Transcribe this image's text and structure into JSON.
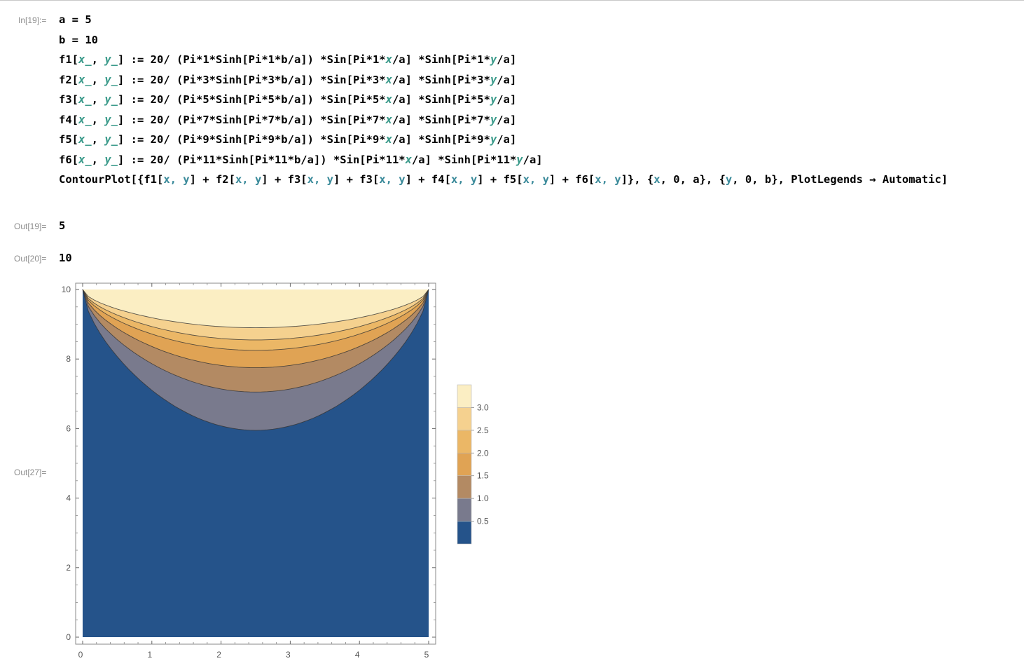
{
  "notebook": {
    "input_label": "In[19]:=",
    "code_lines": [
      [
        {
          "t": "a = 5",
          "c": ""
        }
      ],
      [
        {
          "t": "b = 10",
          "c": ""
        }
      ],
      [
        {
          "t": "f1[",
          "c": ""
        },
        {
          "t": "x_",
          "c": "v"
        },
        {
          "t": ", ",
          "c": ""
        },
        {
          "t": "y_",
          "c": "v"
        },
        {
          "t": "] := 20/ (Pi*1*Sinh[Pi*1*b/a]) *Sin[Pi*1*",
          "c": ""
        },
        {
          "t": "x",
          "c": "v"
        },
        {
          "t": "/a] *Sinh[Pi*1*",
          "c": ""
        },
        {
          "t": "y",
          "c": "v"
        },
        {
          "t": "/a]",
          "c": ""
        }
      ],
      [
        {
          "t": "f2[",
          "c": ""
        },
        {
          "t": "x_",
          "c": "v"
        },
        {
          "t": ", ",
          "c": ""
        },
        {
          "t": "y_",
          "c": "v"
        },
        {
          "t": "] := 20/ (Pi*3*Sinh[Pi*3*b/a]) *Sin[Pi*3*",
          "c": ""
        },
        {
          "t": "x",
          "c": "v"
        },
        {
          "t": "/a] *Sinh[Pi*3*",
          "c": ""
        },
        {
          "t": "y",
          "c": "v"
        },
        {
          "t": "/a]",
          "c": ""
        }
      ],
      [
        {
          "t": "f3[",
          "c": ""
        },
        {
          "t": "x_",
          "c": "v"
        },
        {
          "t": ", ",
          "c": ""
        },
        {
          "t": "y_",
          "c": "v"
        },
        {
          "t": "] := 20/ (Pi*5*Sinh[Pi*5*b/a]) *Sin[Pi*5*",
          "c": ""
        },
        {
          "t": "x",
          "c": "v"
        },
        {
          "t": "/a] *Sinh[Pi*5*",
          "c": ""
        },
        {
          "t": "y",
          "c": "v"
        },
        {
          "t": "/a]",
          "c": ""
        }
      ],
      [
        {
          "t": "f4[",
          "c": ""
        },
        {
          "t": "x_",
          "c": "v"
        },
        {
          "t": ", ",
          "c": ""
        },
        {
          "t": "y_",
          "c": "v"
        },
        {
          "t": "] := 20/ (Pi*7*Sinh[Pi*7*b/a]) *Sin[Pi*7*",
          "c": ""
        },
        {
          "t": "x",
          "c": "v"
        },
        {
          "t": "/a] *Sinh[Pi*7*",
          "c": ""
        },
        {
          "t": "y",
          "c": "v"
        },
        {
          "t": "/a]",
          "c": ""
        }
      ],
      [
        {
          "t": "f5[",
          "c": ""
        },
        {
          "t": "x_",
          "c": "v"
        },
        {
          "t": ", ",
          "c": ""
        },
        {
          "t": "y_",
          "c": "v"
        },
        {
          "t": "] := 20/ (Pi*9*Sinh[Pi*9*b/a]) *Sin[Pi*9*",
          "c": ""
        },
        {
          "t": "x",
          "c": "v"
        },
        {
          "t": "/a] *Sinh[Pi*9*",
          "c": ""
        },
        {
          "t": "y",
          "c": "v"
        },
        {
          "t": "/a]",
          "c": ""
        }
      ],
      [
        {
          "t": "f6[",
          "c": ""
        },
        {
          "t": "x_",
          "c": "v"
        },
        {
          "t": ", ",
          "c": ""
        },
        {
          "t": "y_",
          "c": "v"
        },
        {
          "t": "] := 20/ (Pi*11*Sinh[Pi*11*b/a]) *Sin[Pi*11*",
          "c": ""
        },
        {
          "t": "x",
          "c": "v"
        },
        {
          "t": "/a] *Sinh[Pi*11*",
          "c": ""
        },
        {
          "t": "y",
          "c": "v"
        },
        {
          "t": "/a]",
          "c": ""
        }
      ],
      [
        {
          "t": "ContourPlot[{f1[",
          "c": ""
        },
        {
          "t": "x, y",
          "c": "lv"
        },
        {
          "t": "] + f2[",
          "c": ""
        },
        {
          "t": "x, y",
          "c": "lv"
        },
        {
          "t": "] + f3[",
          "c": ""
        },
        {
          "t": "x, y",
          "c": "lv"
        },
        {
          "t": "] + f3[",
          "c": ""
        },
        {
          "t": "x, y",
          "c": "lv"
        },
        {
          "t": "] + f4[",
          "c": ""
        },
        {
          "t": "x, y",
          "c": "lv"
        },
        {
          "t": "] + f5[",
          "c": ""
        },
        {
          "t": "x, y",
          "c": "lv"
        },
        {
          "t": "] + f6[",
          "c": ""
        },
        {
          "t": "x, y",
          "c": "lv"
        },
        {
          "t": "]}, {",
          "c": ""
        },
        {
          "t": "x",
          "c": "lv"
        },
        {
          "t": ", 0, a}, {",
          "c": ""
        },
        {
          "t": "y",
          "c": "lv"
        },
        {
          "t": ", 0, b}, PlotLegends → Automatic]",
          "c": ""
        }
      ]
    ],
    "outputs": [
      {
        "label": "Out[19]=",
        "value": "5"
      },
      {
        "label": "Out[20]=",
        "value": "10"
      }
    ],
    "plot_label": "Out[27]="
  },
  "chart_data": {
    "type": "contour",
    "x_ticks": [
      "0",
      "1",
      "2",
      "3",
      "4",
      "5"
    ],
    "y_ticks": [
      "0",
      "2",
      "4",
      "6",
      "8",
      "10"
    ],
    "xlim": [
      0,
      5
    ],
    "ylim": [
      0,
      10
    ],
    "contour_levels": [
      0.5,
      1.0,
      1.5,
      2.0,
      2.5,
      3.0
    ],
    "legend_labels": [
      "3.0",
      "2.5",
      "2.0",
      "1.5",
      "1.0",
      "0.5"
    ],
    "colors": [
      "#25538a",
      "#797a8d",
      "#b38a63",
      "#e0a354",
      "#ebb766",
      "#f5d18f",
      "#fbeec3"
    ],
    "contours": [
      {
        "level": 0.5,
        "min_y": 5.95
      },
      {
        "level": 1.0,
        "min_y": 7.05
      },
      {
        "level": 1.5,
        "min_y": 7.75
      },
      {
        "level": 2.0,
        "min_y": 8.25
      },
      {
        "level": 2.5,
        "min_y": 8.55
      },
      {
        "level": 3.0,
        "min_y": 8.9
      }
    ],
    "legend_position": "right"
  }
}
